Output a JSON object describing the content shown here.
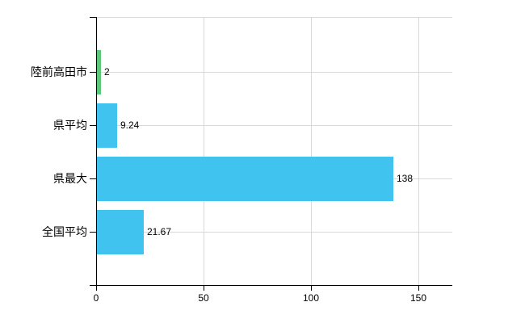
{
  "chart_data": {
    "type": "bar",
    "orientation": "horizontal",
    "title": "",
    "xlabel": "",
    "ylabel": "",
    "categories": [
      "陸前高田市",
      "県平均",
      "県最大",
      "全国平均"
    ],
    "values": [
      2,
      9.24,
      138,
      21.67
    ],
    "value_labels": [
      "2",
      "9.24",
      "138",
      "21.67"
    ],
    "bar_colors": [
      "#5ec87a",
      "#41c3f0",
      "#41c3f0",
      "#41c3f0"
    ],
    "x_ticks": [
      0,
      50,
      100,
      150
    ],
    "x_tick_labels": [
      "0",
      "50",
      "100",
      "150"
    ],
    "xlim": [
      0,
      166
    ],
    "grid": true,
    "gridline_color": "#d9d9d9",
    "axis_color": "#000000",
    "text_color": "#000000",
    "background_color": "#ffffff",
    "legend": null
  }
}
